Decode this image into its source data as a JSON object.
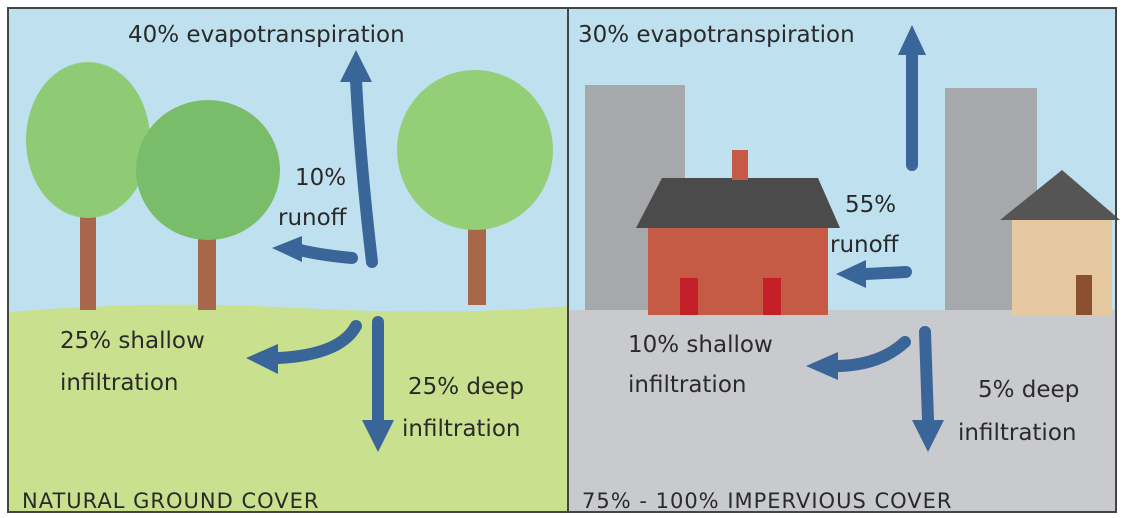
{
  "panels": [
    {
      "caption": "NATURAL GROUND COVER",
      "labels": [
        {
          "lines": [
            "40% evapotranspiration"
          ]
        },
        {
          "lines": [
            "10%",
            "runoff"
          ]
        },
        {
          "lines": [
            "25% shallow",
            "infiltration"
          ]
        },
        {
          "lines": [
            "25% deep",
            "infiltration"
          ]
        }
      ]
    },
    {
      "caption": "75% - 100% IMPERVIOUS COVER",
      "labels": [
        {
          "lines": [
            "30% evapotranspiration"
          ]
        },
        {
          "lines": [
            "55%",
            "runoff"
          ]
        },
        {
          "lines": [
            "10% shallow",
            "infiltration"
          ]
        },
        {
          "lines": [
            "5% deep",
            "infiltration"
          ]
        }
      ]
    }
  ]
}
